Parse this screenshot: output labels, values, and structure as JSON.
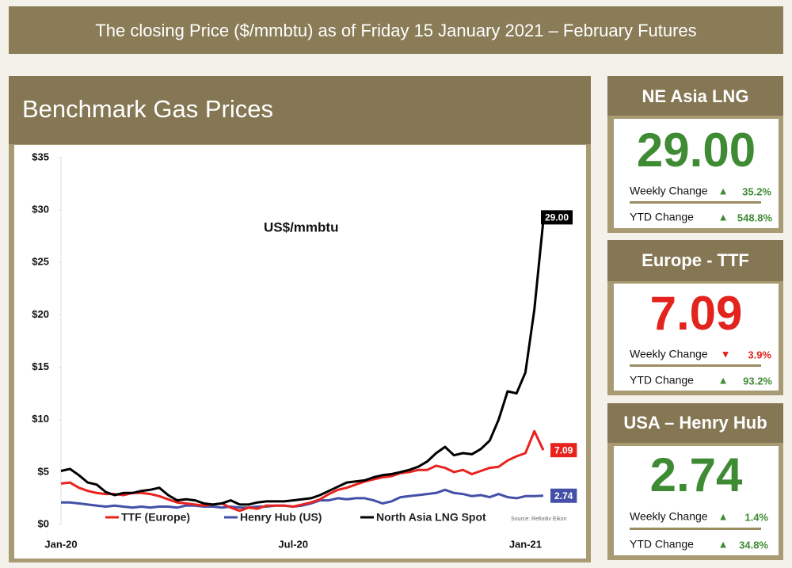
{
  "header": {
    "title": "The closing Price ($/mmbtu) as of  Friday 15 January 2021 – February Futures"
  },
  "panel": {
    "title": "Benchmark Gas Prices"
  },
  "chart_data": {
    "type": "line",
    "annotation": "US$/mmbtu",
    "source": "Source: Refinitiv Eikon",
    "categories": [
      "Jan-20",
      null,
      null,
      null,
      null,
      null,
      null,
      null,
      null,
      null,
      null,
      null,
      null,
      null,
      null,
      null,
      null,
      null,
      null,
      null,
      null,
      null,
      null,
      null,
      null,
      null,
      "Jul-20",
      null,
      null,
      null,
      null,
      null,
      null,
      null,
      null,
      null,
      null,
      null,
      null,
      null,
      null,
      null,
      null,
      null,
      null,
      null,
      null,
      null,
      null,
      null,
      null,
      null,
      "Jan-21",
      null,
      null
    ],
    "ylim": [
      0,
      35
    ],
    "yticks": [
      {
        "value": 0,
        "label": "$0"
      },
      {
        "value": 5,
        "label": "$5"
      },
      {
        "value": 10,
        "label": "$10"
      },
      {
        "value": 15,
        "label": "$15"
      },
      {
        "value": 20,
        "label": "$20"
      },
      {
        "value": 25,
        "label": "$25"
      },
      {
        "value": 30,
        "label": "$30"
      },
      {
        "value": 35,
        "label": "$35"
      }
    ],
    "grid": false,
    "series": [
      {
        "name": "North Asia LNG Spot",
        "color": "#000000",
        "values": [
          5.1,
          5.3,
          4.7,
          4.0,
          3.8,
          3.1,
          2.8,
          3.0,
          3.0,
          3.2,
          3.3,
          3.5,
          2.8,
          2.3,
          2.4,
          2.3,
          2.0,
          1.9,
          2.0,
          2.3,
          1.9,
          1.9,
          2.1,
          2.2,
          2.2,
          2.2,
          2.3,
          2.4,
          2.5,
          2.8,
          3.2,
          3.6,
          4.0,
          4.1,
          4.2,
          4.5,
          4.7,
          4.8,
          5.0,
          5.2,
          5.5,
          6.0,
          6.8,
          7.4,
          6.6,
          6.8,
          6.7,
          7.2,
          8.0,
          10.0,
          12.7,
          12.5,
          14.5,
          20.5,
          29.0
        ],
        "value_labels": [
          null,
          null,
          null,
          null,
          null,
          null,
          null,
          null,
          null,
          null,
          null,
          null,
          null,
          null,
          null,
          null,
          null,
          null,
          null,
          null,
          null,
          null,
          null,
          null,
          null,
          null,
          null,
          null,
          null,
          null,
          null,
          null,
          null,
          null,
          null,
          null,
          null,
          null,
          null,
          null,
          null,
          null,
          null,
          null,
          null,
          null,
          null,
          null,
          null,
          null,
          null,
          null,
          null,
          null,
          "29.00"
        ]
      },
      {
        "name": "TTF (Europe)",
        "color": "#e8231e",
        "values": [
          3.9,
          4.0,
          3.5,
          3.2,
          3.0,
          2.9,
          2.9,
          2.8,
          3.0,
          3.0,
          2.9,
          2.7,
          2.4,
          2.1,
          2.0,
          1.9,
          1.8,
          1.9,
          2.0,
          1.6,
          1.3,
          1.6,
          1.5,
          1.8,
          1.8,
          1.8,
          1.7,
          1.9,
          2.1,
          2.4,
          2.9,
          3.3,
          3.5,
          3.8,
          4.1,
          4.3,
          4.5,
          4.6,
          4.9,
          5.0,
          5.2,
          5.2,
          5.6,
          5.4,
          5.0,
          5.2,
          4.8,
          5.1,
          5.4,
          5.5,
          6.1,
          6.5,
          6.8,
          8.9,
          7.09
        ]
      },
      {
        "name": "Henry Hub (US)",
        "color": "#4450a8",
        "values": [
          2.1,
          2.1,
          2.0,
          1.9,
          1.8,
          1.7,
          1.8,
          1.7,
          1.6,
          1.7,
          1.6,
          1.7,
          1.7,
          1.6,
          1.8,
          1.8,
          1.7,
          1.7,
          1.6,
          1.7,
          1.6,
          1.6,
          1.7,
          1.7,
          1.8,
          1.8,
          1.7,
          1.8,
          2.0,
          2.3,
          2.3,
          2.5,
          2.4,
          2.5,
          2.5,
          2.3,
          2.0,
          2.2,
          2.6,
          2.7,
          2.8,
          2.9,
          3.0,
          3.3,
          3.0,
          2.9,
          2.7,
          2.8,
          2.6,
          2.9,
          2.6,
          2.5,
          2.7,
          2.7,
          2.74
        ]
      }
    ]
  },
  "cards": [
    {
      "title": "NE Asia LNG",
      "price": "29.00",
      "weekly_label": "Weekly Change",
      "weekly_arrow": "▲",
      "weekly_change": "35.2%",
      "ytd_label": "YTD Change",
      "ytd_arrow": "▲",
      "ytd_change": "548.8%"
    },
    {
      "title": "Europe - TTF",
      "price": "7.09",
      "weekly_label": "Weekly Change",
      "weekly_arrow": "▼",
      "weekly_change": "3.9%",
      "ytd_label": "YTD Change",
      "ytd_arrow": "▲",
      "ytd_change": "93.2%"
    },
    {
      "title": "USA – Henry Hub",
      "price": "2.74",
      "weekly_label": "Weekly Change",
      "weekly_arrow": "▲",
      "weekly_change": "1.4%",
      "ytd_label": "YTD Change",
      "ytd_arrow": "▲",
      "ytd_change": "34.8%"
    }
  ]
}
